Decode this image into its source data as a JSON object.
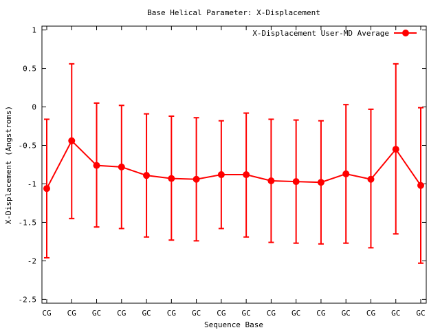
{
  "chart_data": {
    "type": "line",
    "title": "Base  Helical Parameter: X-Displacement",
    "xlabel": "Sequence Base",
    "ylabel": "X-Displacement (Angstroms)",
    "ylim": [
      -2.55,
      1.05
    ],
    "yticks": [
      1,
      0.5,
      0,
      -0.5,
      -1,
      -1.5,
      -2,
      -2.5
    ],
    "ytick_labels": [
      "1",
      "0.5",
      "0",
      "-0.5",
      "-1",
      "-1.5",
      "-2",
      "-2.5"
    ],
    "categories": [
      "CG",
      "CG",
      "GC",
      "CG",
      "GC",
      "CG",
      "GC",
      "CG",
      "GC",
      "CG",
      "GC",
      "CG",
      "GC",
      "CG",
      "GC",
      "GC"
    ],
    "legend_position": "top-right",
    "grid": false,
    "series": [
      {
        "name": "X-Displacement User-MD Average",
        "color": "#ff0000",
        "values": [
          -1.06,
          -0.44,
          -0.76,
          -0.78,
          -0.89,
          -0.93,
          -0.94,
          -0.88,
          -0.88,
          -0.96,
          -0.97,
          -0.98,
          -0.87,
          -0.94,
          -0.55,
          -1.02
        ],
        "err_low": [
          -1.96,
          -1.45,
          -1.56,
          -1.58,
          -1.69,
          -1.73,
          -1.74,
          -1.58,
          -1.69,
          -1.76,
          -1.77,
          -1.78,
          -1.77,
          -1.83,
          -1.65,
          -2.03
        ],
        "err_high": [
          -0.16,
          0.56,
          0.05,
          0.02,
          -0.09,
          -0.12,
          -0.14,
          -0.18,
          -0.08,
          -0.16,
          -0.17,
          -0.18,
          0.03,
          -0.03,
          0.56,
          -0.01
        ]
      }
    ]
  }
}
